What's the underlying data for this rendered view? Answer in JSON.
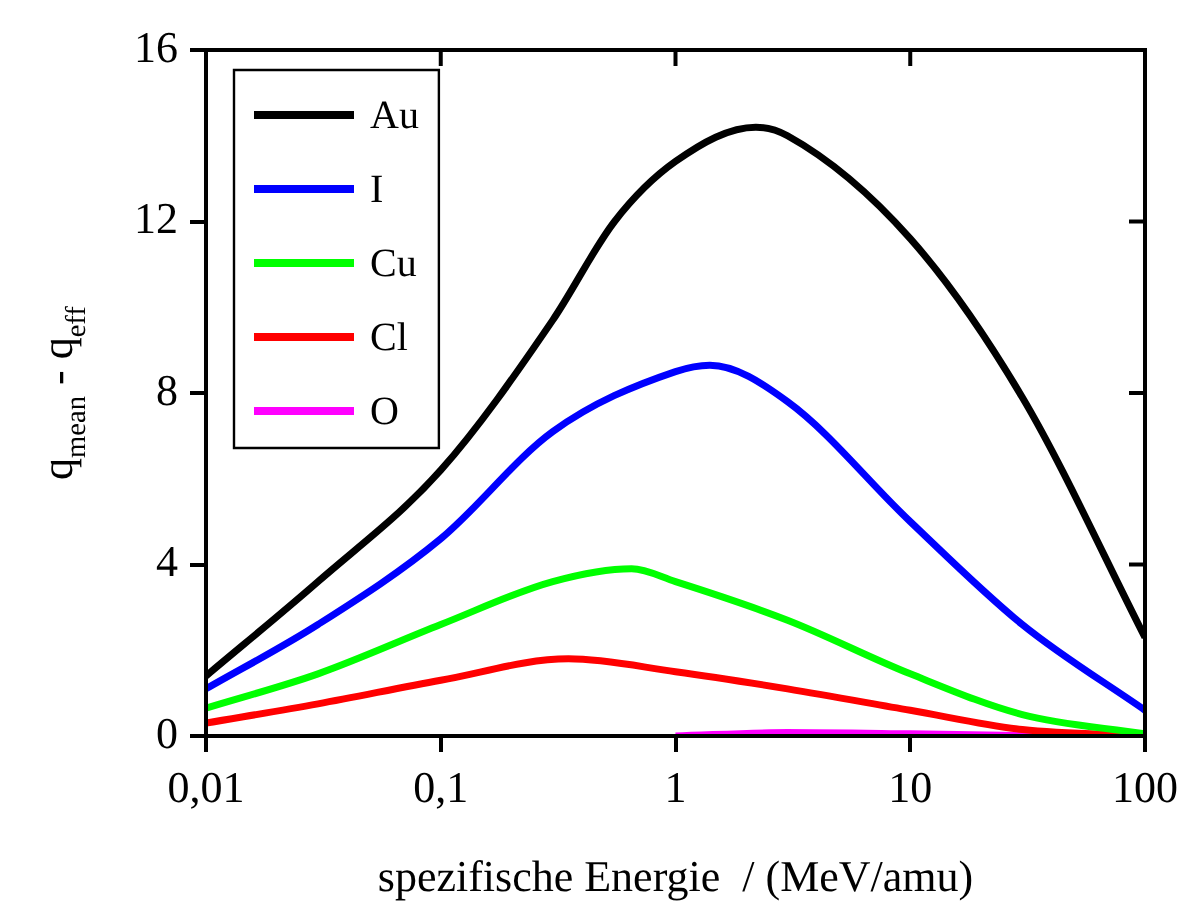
{
  "chart_data": {
    "type": "line",
    "xlabel": "spezifische Energie  / (MeV/amu)",
    "ylabel": "q$_{mean}$ - q$_{eff}$",
    "log": "x",
    "xlim": [
      0.01,
      100
    ],
    "xticks": [
      {
        "value": 0.01,
        "label": "0,01"
      },
      {
        "value": 0.1,
        "label": "0,1"
      },
      1,
      10,
      100
    ],
    "ylim": [
      0,
      16
    ],
    "yticks": [
      0,
      4,
      8,
      12,
      16
    ],
    "grid": false,
    "legend": "top left",
    "line_style": "solid",
    "marker": "none",
    "series": [
      {
        "name": "Au",
        "color": "#000000",
        "x": [
          0.01,
          0.03,
          0.1,
          0.3,
          0.55,
          1,
          2.2,
          3,
          10,
          30,
          100
        ],
        "values": [
          1.4,
          3.6,
          6.2,
          9.7,
          12.0,
          13.4,
          14.2,
          14.0,
          11.6,
          7.9,
          2.3
        ]
      },
      {
        "name": "I",
        "color": "#0000ff",
        "x": [
          0.01,
          0.03,
          0.1,
          0.3,
          1,
          1.4,
          3,
          10,
          30,
          100
        ],
        "values": [
          1.1,
          2.6,
          4.6,
          7.1,
          8.5,
          8.65,
          7.8,
          5.0,
          2.6,
          0.6
        ]
      },
      {
        "name": "Cu",
        "color": "#00ff00",
        "x": [
          0.01,
          0.03,
          0.1,
          0.3,
          0.65,
          1,
          3,
          10,
          30,
          100
        ],
        "values": [
          0.65,
          1.45,
          2.6,
          3.6,
          3.9,
          3.6,
          2.7,
          1.45,
          0.5,
          0.05
        ]
      },
      {
        "name": "Cl",
        "color": "#ff0000",
        "x": [
          0.01,
          0.03,
          0.1,
          0.35,
          1,
          3,
          10,
          30,
          100
        ],
        "values": [
          0.3,
          0.75,
          1.3,
          1.8,
          1.5,
          1.1,
          0.6,
          0.15,
          0
        ]
      },
      {
        "name": "O",
        "color": "#ff00ff",
        "x": [
          1,
          3,
          10,
          30,
          100
        ],
        "values": [
          0,
          0.08,
          0.05,
          0.01,
          0
        ]
      }
    ]
  }
}
